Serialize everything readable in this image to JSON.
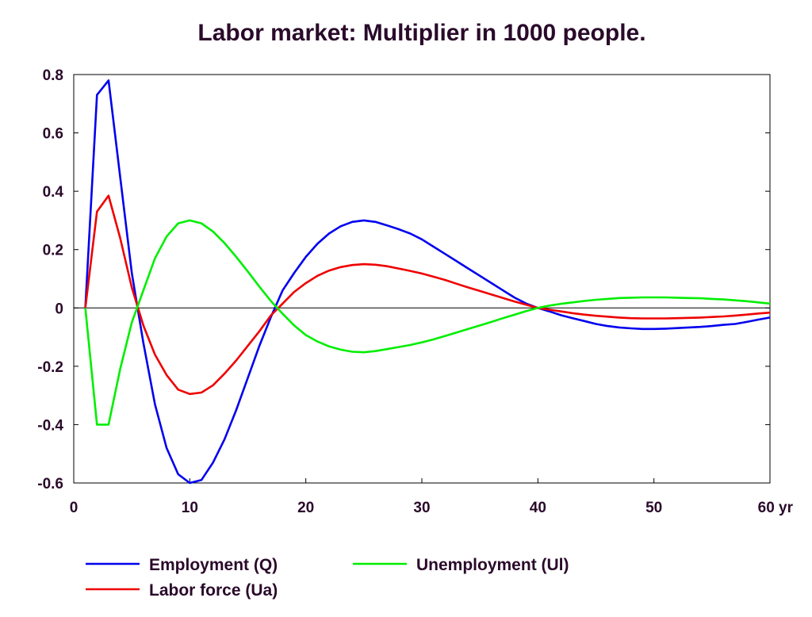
{
  "chart_data": {
    "type": "line",
    "title": "Labor market: Multiplier in 1000 people.",
    "xlabel": "",
    "ylabel": "",
    "x_unit": "yr",
    "xlim": [
      0,
      60
    ],
    "ylim": [
      -0.6,
      0.8
    ],
    "xticks": [
      0,
      10,
      20,
      30,
      40,
      50,
      60
    ],
    "xtick_labels": [
      "0",
      "10",
      "20",
      "30",
      "40",
      "50",
      "60 yr"
    ],
    "yticks": [
      0.8,
      0.6,
      0.4,
      0.2,
      0,
      -0.2,
      -0.4,
      -0.6
    ],
    "ytick_labels": [
      "0.8",
      "0.6",
      "0.4",
      "0.2",
      "0",
      "-0.2",
      "-0.4",
      "-0.6"
    ],
    "zero_line": true,
    "grid": false,
    "legend_position": "bottom",
    "x": [
      1,
      2,
      3,
      4,
      5,
      6,
      7,
      8,
      9,
      10,
      11,
      12,
      13,
      14,
      15,
      16,
      17,
      18,
      19,
      20,
      21,
      22,
      23,
      24,
      25,
      26,
      27,
      28,
      29,
      30,
      31,
      32,
      33,
      34,
      35,
      36,
      37,
      38,
      39,
      40,
      41,
      42,
      43,
      44,
      45,
      46,
      47,
      48,
      49,
      50,
      51,
      52,
      53,
      54,
      55,
      56,
      57,
      58,
      59,
      60
    ],
    "series": [
      {
        "name": "Employment (Q)",
        "color": "#0000ee",
        "values": [
          0.0,
          0.73,
          0.78,
          0.45,
          0.12,
          -0.12,
          -0.33,
          -0.48,
          -0.57,
          -0.6,
          -0.59,
          -0.53,
          -0.45,
          -0.35,
          -0.24,
          -0.13,
          -0.03,
          0.06,
          0.12,
          0.175,
          0.22,
          0.255,
          0.28,
          0.295,
          0.3,
          0.295,
          0.283,
          0.27,
          0.255,
          0.235,
          0.21,
          0.185,
          0.16,
          0.135,
          0.11,
          0.085,
          0.06,
          0.035,
          0.015,
          0.0,
          -0.012,
          -0.025,
          -0.035,
          -0.045,
          -0.055,
          -0.062,
          -0.067,
          -0.07,
          -0.072,
          -0.072,
          -0.071,
          -0.069,
          -0.067,
          -0.065,
          -0.062,
          -0.058,
          -0.055,
          -0.048,
          -0.04,
          -0.033
        ]
      },
      {
        "name": "Labor force (Ua)",
        "color": "#ee0000",
        "values": [
          0.0,
          0.33,
          0.385,
          0.24,
          0.07,
          -0.06,
          -0.16,
          -0.23,
          -0.28,
          -0.295,
          -0.29,
          -0.265,
          -0.225,
          -0.18,
          -0.13,
          -0.08,
          -0.025,
          0.015,
          0.055,
          0.085,
          0.11,
          0.128,
          0.14,
          0.147,
          0.15,
          0.148,
          0.143,
          0.135,
          0.127,
          0.118,
          0.107,
          0.096,
          0.083,
          0.07,
          0.058,
          0.046,
          0.034,
          0.022,
          0.011,
          0.0,
          -0.006,
          -0.012,
          -0.018,
          -0.023,
          -0.027,
          -0.03,
          -0.033,
          -0.035,
          -0.036,
          -0.036,
          -0.036,
          -0.035,
          -0.034,
          -0.033,
          -0.031,
          -0.029,
          -0.026,
          -0.023,
          -0.019,
          -0.016
        ]
      },
      {
        "name": "Unemployment (Ul)",
        "color": "#00ee00",
        "values": [
          0.0,
          -0.4,
          -0.4,
          -0.21,
          -0.05,
          0.06,
          0.17,
          0.245,
          0.29,
          0.3,
          0.29,
          0.262,
          0.222,
          0.175,
          0.125,
          0.073,
          0.023,
          -0.02,
          -0.06,
          -0.093,
          -0.115,
          -0.132,
          -0.143,
          -0.15,
          -0.152,
          -0.148,
          -0.141,
          -0.134,
          -0.127,
          -0.118,
          -0.108,
          -0.096,
          -0.084,
          -0.072,
          -0.06,
          -0.048,
          -0.035,
          -0.023,
          -0.011,
          0.0,
          0.008,
          0.014,
          0.019,
          0.024,
          0.028,
          0.031,
          0.034,
          0.035,
          0.036,
          0.036,
          0.036,
          0.035,
          0.034,
          0.033,
          0.031,
          0.029,
          0.026,
          0.023,
          0.019,
          0.015
        ]
      }
    ]
  }
}
